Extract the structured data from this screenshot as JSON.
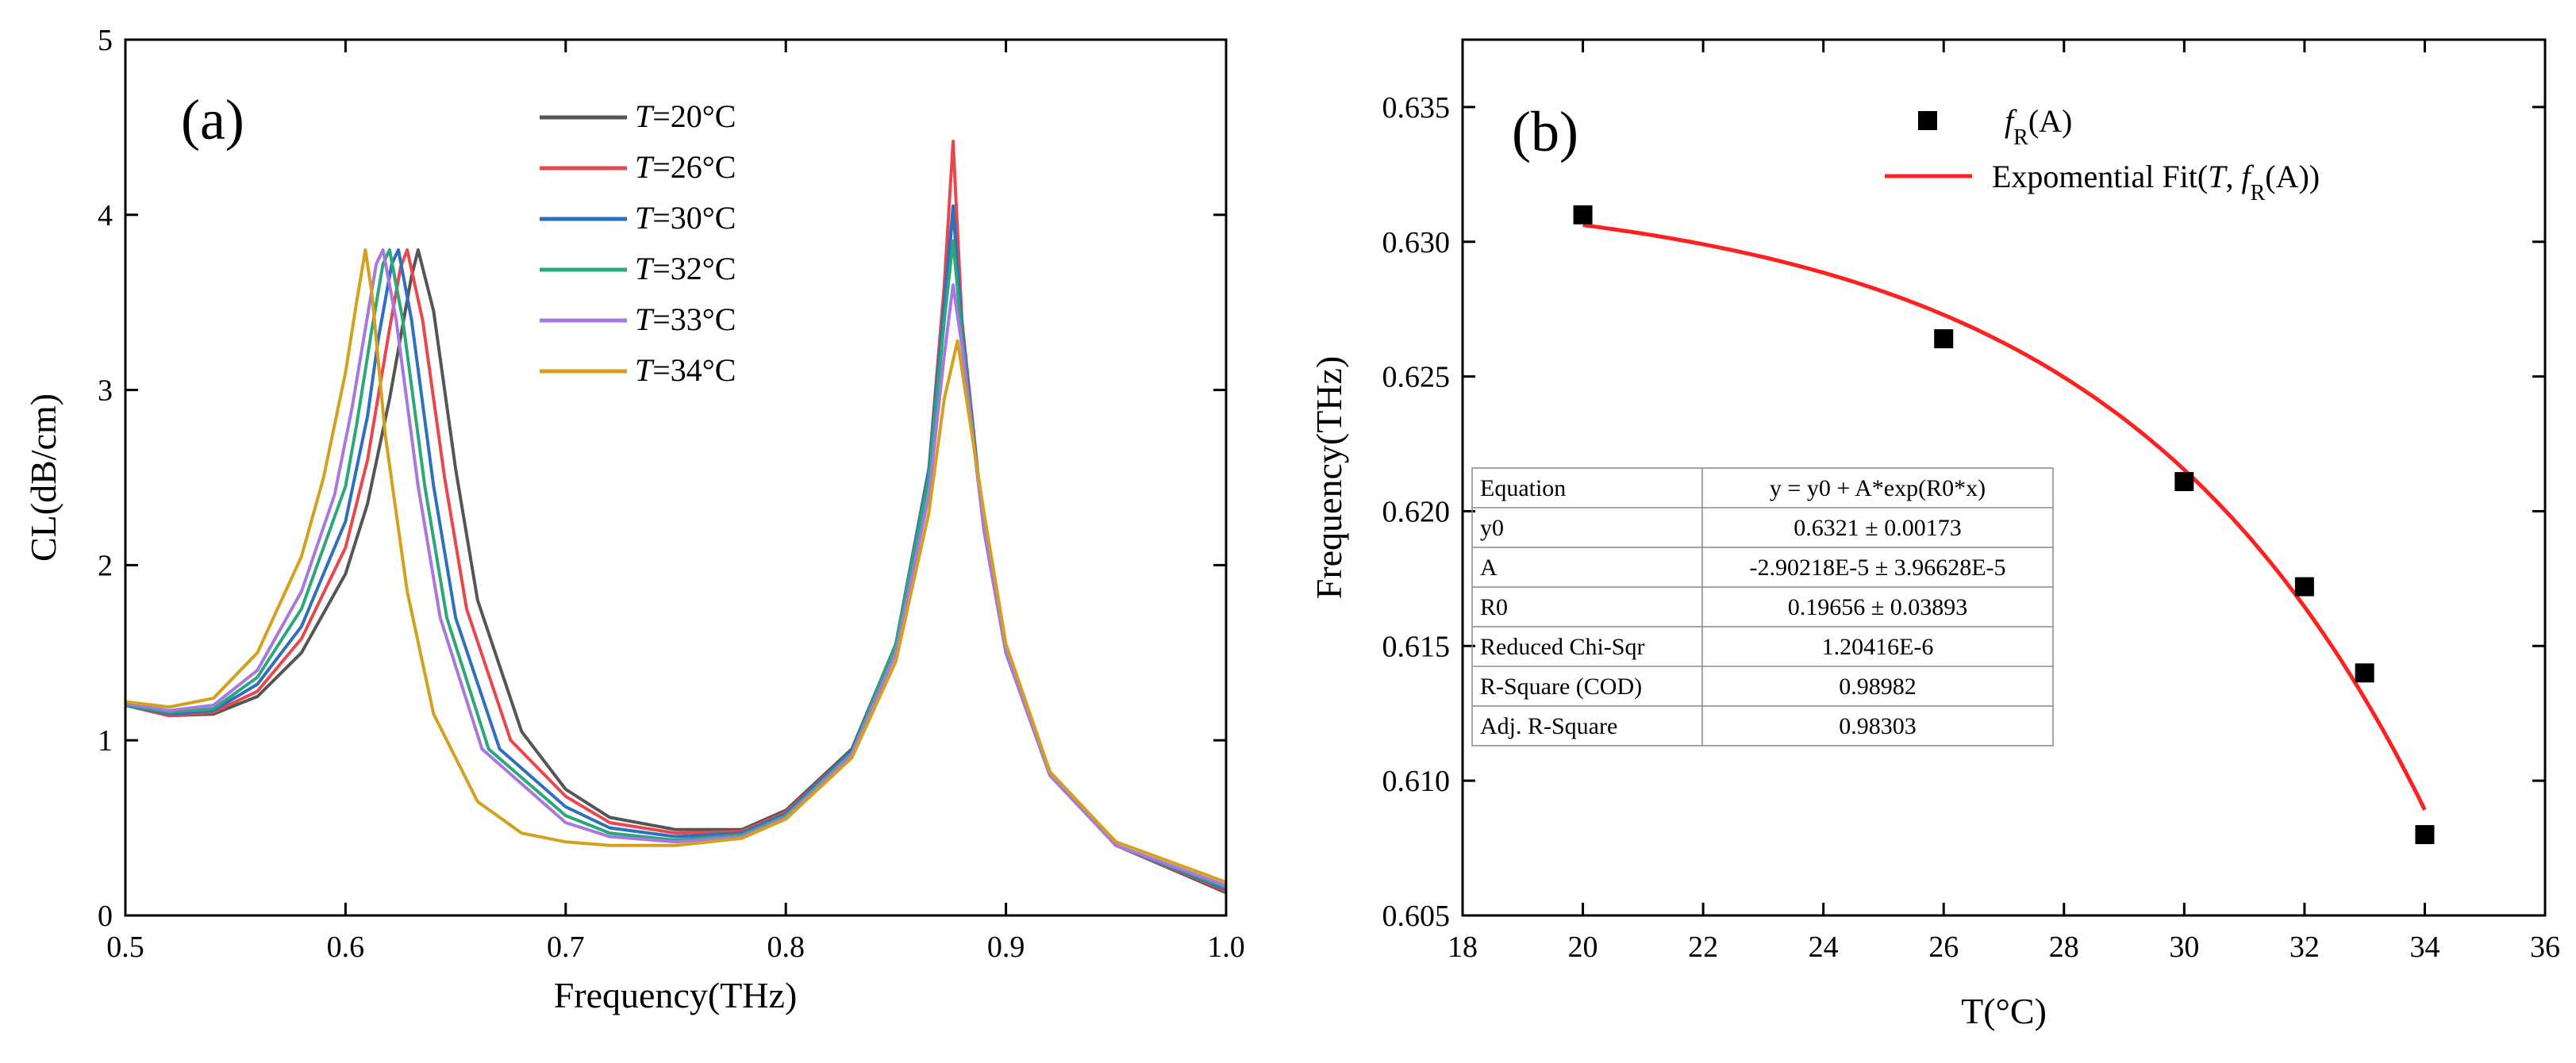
{
  "chart_data": [
    {
      "type": "line",
      "panel_label": "(a)",
      "xlabel": "Frequency(THz)",
      "ylabel": "CL(dB/cm)",
      "xlim": [
        0.5,
        1.0
      ],
      "ylim": [
        0,
        5
      ],
      "xticks": [
        "0.5",
        "0.6",
        "0.7",
        "0.8",
        "0.9",
        "1.0"
      ],
      "yticks": [
        "0",
        "1",
        "2",
        "3",
        "4",
        "5"
      ],
      "legend_position": "top-center",
      "grid": false,
      "series": [
        {
          "name": "T=20°C",
          "name_italic": "T",
          "name_rest": "=20°C",
          "color": "#555555",
          "x": [
            0.5,
            0.52,
            0.54,
            0.56,
            0.58,
            0.6,
            0.61,
            0.62,
            0.63,
            0.633,
            0.64,
            0.65,
            0.66,
            0.68,
            0.7,
            0.72,
            0.75,
            0.78,
            0.8,
            0.83,
            0.85,
            0.865,
            0.872,
            0.876,
            0.88,
            0.89,
            0.9,
            0.92,
            0.95,
            1.0
          ],
          "y": [
            1.2,
            1.14,
            1.15,
            1.25,
            1.5,
            1.95,
            2.35,
            2.95,
            3.65,
            3.8,
            3.45,
            2.55,
            1.8,
            1.05,
            0.72,
            0.56,
            0.49,
            0.49,
            0.6,
            0.95,
            1.55,
            2.5,
            3.4,
            4.05,
            3.3,
            2.2,
            1.5,
            0.8,
            0.4,
            0.13
          ]
        },
        {
          "name": "T=26°C",
          "name_italic": "T",
          "name_rest": "=26°C",
          "color": "#e8474b",
          "x": [
            0.5,
            0.52,
            0.54,
            0.56,
            0.58,
            0.6,
            0.61,
            0.62,
            0.625,
            0.628,
            0.635,
            0.645,
            0.655,
            0.675,
            0.7,
            0.72,
            0.75,
            0.78,
            0.8,
            0.83,
            0.85,
            0.865,
            0.872,
            0.876,
            0.88,
            0.89,
            0.9,
            0.92,
            0.95,
            1.0
          ],
          "y": [
            1.2,
            1.14,
            1.16,
            1.28,
            1.58,
            2.1,
            2.6,
            3.35,
            3.7,
            3.8,
            3.4,
            2.5,
            1.75,
            1.0,
            0.68,
            0.53,
            0.47,
            0.48,
            0.59,
            0.94,
            1.55,
            2.55,
            3.6,
            4.42,
            3.4,
            2.2,
            1.5,
            0.8,
            0.4,
            0.14
          ]
        },
        {
          "name": "T=30°C",
          "name_italic": "T",
          "name_rest": "=30°C",
          "color": "#2f6fc0",
          "x": [
            0.5,
            0.52,
            0.54,
            0.56,
            0.58,
            0.6,
            0.61,
            0.615,
            0.621,
            0.624,
            0.63,
            0.64,
            0.65,
            0.67,
            0.7,
            0.72,
            0.75,
            0.78,
            0.8,
            0.83,
            0.85,
            0.865,
            0.872,
            0.876,
            0.88,
            0.89,
            0.9,
            0.92,
            0.95,
            1.0
          ],
          "y": [
            1.2,
            1.15,
            1.17,
            1.32,
            1.65,
            2.25,
            2.85,
            3.3,
            3.72,
            3.8,
            3.4,
            2.45,
            1.7,
            0.95,
            0.62,
            0.5,
            0.45,
            0.47,
            0.58,
            0.94,
            1.55,
            2.55,
            3.5,
            4.05,
            3.35,
            2.2,
            1.5,
            0.8,
            0.4,
            0.15
          ]
        },
        {
          "name": "T=32°C",
          "name_italic": "T",
          "name_rest": "=32°C",
          "color": "#2aa87a",
          "x": [
            0.5,
            0.52,
            0.54,
            0.56,
            0.58,
            0.6,
            0.605,
            0.612,
            0.617,
            0.62,
            0.626,
            0.636,
            0.646,
            0.665,
            0.7,
            0.72,
            0.75,
            0.78,
            0.8,
            0.83,
            0.85,
            0.865,
            0.872,
            0.876,
            0.88,
            0.89,
            0.9,
            0.92,
            0.95,
            1.0
          ],
          "y": [
            1.2,
            1.16,
            1.18,
            1.36,
            1.75,
            2.45,
            2.8,
            3.35,
            3.72,
            3.8,
            3.4,
            2.45,
            1.7,
            0.95,
            0.57,
            0.47,
            0.43,
            0.46,
            0.57,
            0.93,
            1.55,
            2.5,
            3.4,
            3.85,
            3.3,
            2.2,
            1.5,
            0.8,
            0.4,
            0.16
          ]
        },
        {
          "name": "T=33°C",
          "name_italic": "T",
          "name_rest": "=33°C",
          "color": "#a678e0",
          "x": [
            0.5,
            0.52,
            0.54,
            0.56,
            0.58,
            0.595,
            0.603,
            0.609,
            0.614,
            0.617,
            0.623,
            0.633,
            0.643,
            0.662,
            0.7,
            0.72,
            0.75,
            0.78,
            0.8,
            0.83,
            0.85,
            0.865,
            0.872,
            0.876,
            0.88,
            0.89,
            0.9,
            0.92,
            0.95,
            1.0
          ],
          "y": [
            1.21,
            1.17,
            1.2,
            1.4,
            1.85,
            2.4,
            2.9,
            3.35,
            3.72,
            3.8,
            3.4,
            2.45,
            1.7,
            0.95,
            0.53,
            0.45,
            0.42,
            0.45,
            0.56,
            0.92,
            1.5,
            2.4,
            3.2,
            3.6,
            3.25,
            2.2,
            1.5,
            0.8,
            0.4,
            0.17
          ]
        },
        {
          "name": "T=34°C",
          "name_italic": "T",
          "name_rest": "=34°C",
          "color": "#d4a020",
          "x": [
            0.5,
            0.52,
            0.54,
            0.56,
            0.58,
            0.59,
            0.6,
            0.605,
            0.609,
            0.612,
            0.618,
            0.628,
            0.64,
            0.66,
            0.68,
            0.7,
            0.72,
            0.75,
            0.78,
            0.8,
            0.83,
            0.85,
            0.865,
            0.872,
            0.878,
            0.89,
            0.9,
            0.92,
            0.95,
            1.0
          ],
          "y": [
            1.22,
            1.19,
            1.24,
            1.5,
            2.05,
            2.5,
            3.1,
            3.5,
            3.8,
            3.55,
            2.75,
            1.85,
            1.15,
            0.65,
            0.47,
            0.42,
            0.4,
            0.4,
            0.44,
            0.55,
            0.9,
            1.45,
            2.3,
            2.95,
            3.28,
            2.3,
            1.55,
            0.82,
            0.42,
            0.19
          ]
        }
      ]
    },
    {
      "type": "scatter",
      "panel_label": "(b)",
      "xlabel": "T(°C)",
      "ylabel": "Frequency(THz)",
      "xlim": [
        18,
        36
      ],
      "ylim": [
        0.605,
        0.6375
      ],
      "xticks": [
        "18",
        "20",
        "22",
        "24",
        "26",
        "28",
        "30",
        "32",
        "34",
        "36"
      ],
      "yticks": [
        "0.605",
        "0.610",
        "0.615",
        "0.620",
        "0.625",
        "0.630",
        "0.635"
      ],
      "legend_position": "top-right",
      "grid": false,
      "scatter": {
        "name_italic": "f",
        "name_sub": "R",
        "name_rest": "(A)",
        "color": "#000000",
        "x": [
          20,
          26,
          30,
          32,
          33,
          34
        ],
        "y": [
          0.631,
          0.6264,
          0.6211,
          0.6172,
          0.614,
          0.608
        ]
      },
      "fit": {
        "name_prefix": "Expomential Fit(",
        "name_italic_t": "T",
        "name_mid": ", ",
        "name_italic_f": "f",
        "name_sub": "R",
        "name_suffix": "(A))",
        "color": "#ff2020",
        "y0": 0.6321,
        "A": -2.90218e-05,
        "R0": 0.19656,
        "x_range": [
          20,
          34
        ]
      },
      "table": [
        [
          "Equation",
          "y = y0 + A*exp(R0*x)"
        ],
        [
          "y0",
          "0.6321 ± 0.00173"
        ],
        [
          "A",
          "-2.90218E-5 ± 3.96628E-5"
        ],
        [
          "R0",
          "0.19656 ± 0.03893"
        ],
        [
          "Reduced Chi-Sqr",
          "1.20416E-6"
        ],
        [
          "R-Square (COD)",
          "0.98982"
        ],
        [
          "Adj. R-Square",
          "0.98303"
        ]
      ]
    }
  ]
}
